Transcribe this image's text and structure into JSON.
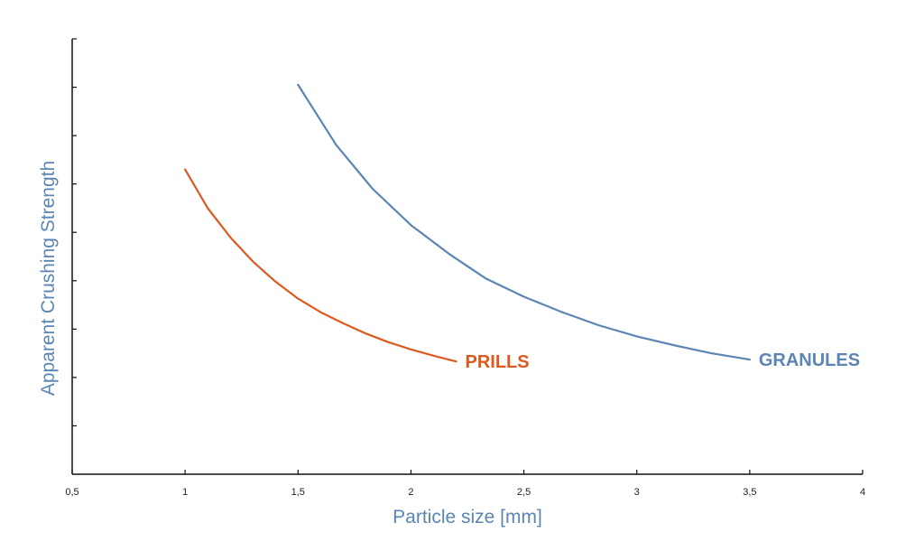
{
  "chart_data": {
    "type": "line",
    "xlabel": "Particle size [mm]",
    "ylabel": "Apparent Crushing Strength",
    "xlim": [
      0.5,
      4
    ],
    "ylim": [
      0,
      9
    ],
    "x_ticks": [
      "0,5",
      "1",
      "1,5",
      "2",
      "2,5",
      "3",
      "3,5",
      "4"
    ],
    "y_tick_count": 9,
    "y_tick_labels_shown": false,
    "grid": false,
    "legend": "inline labels at line ends",
    "colors": {
      "axis": "#111111",
      "title": "#5b86b4"
    },
    "series": [
      {
        "name": "PRILLS",
        "color": "#dd5a1e",
        "x": [
          1.0,
          1.1,
          1.2,
          1.3,
          1.4,
          1.5,
          1.6,
          1.7,
          1.8,
          1.9,
          2.0,
          2.1,
          2.2
        ],
        "y": [
          6.3,
          5.5,
          4.9,
          4.4,
          3.98,
          3.63,
          3.35,
          3.12,
          2.91,
          2.73,
          2.58,
          2.45,
          2.33
        ]
      },
      {
        "name": "GRANULES",
        "color": "#5b86b4",
        "x": [
          1.5,
          1.67,
          1.83,
          2.0,
          2.17,
          2.33,
          2.5,
          2.67,
          2.83,
          3.0,
          3.17,
          3.33,
          3.5
        ],
        "y": [
          8.05,
          6.8,
          5.9,
          5.15,
          4.55,
          4.05,
          3.67,
          3.35,
          3.08,
          2.85,
          2.66,
          2.5,
          2.37
        ]
      }
    ]
  }
}
